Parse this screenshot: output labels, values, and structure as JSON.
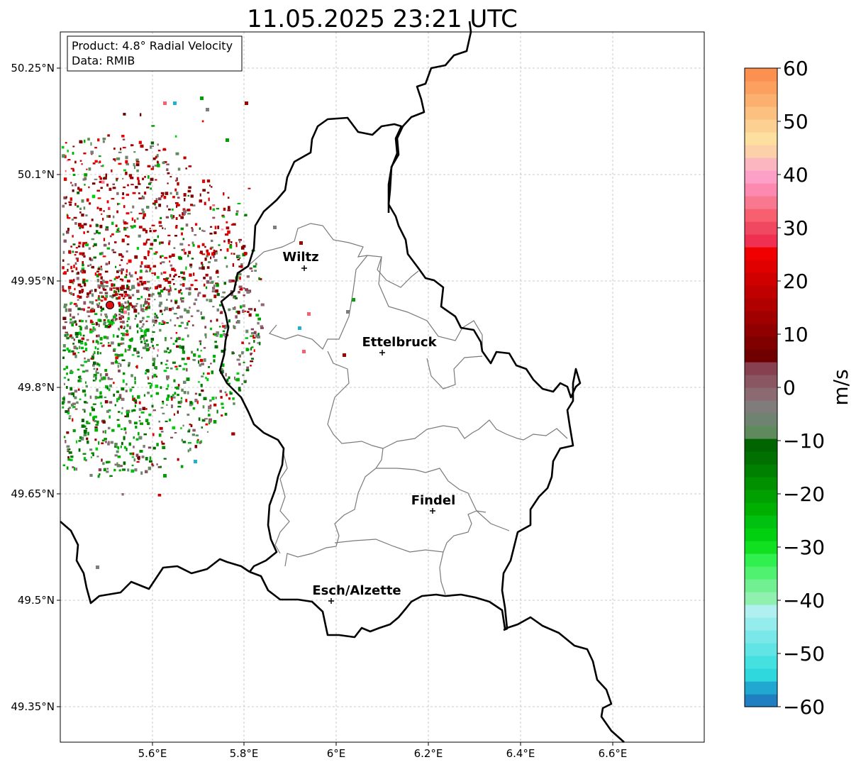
{
  "title": "11.05.2025 23:21 UTC",
  "info": {
    "product": "Product: 4.8° Radial Velocity",
    "data": "Data: RMIB"
  },
  "map": {
    "lat_ticks": [
      "50.25°N",
      "50.1°N",
      "49.95°N",
      "49.8°N",
      "49.65°N",
      "49.5°N",
      "49.35°N"
    ],
    "lon_ticks": [
      "5.6°E",
      "5.8°E",
      "6°E",
      "6.2°E",
      "6.4°E",
      "6.6°E"
    ],
    "cities": [
      {
        "name": "Wiltz"
      },
      {
        "name": "Ettelbruck"
      },
      {
        "name": "Findel"
      },
      {
        "name": "Esch/Alzette"
      }
    ],
    "radar_site_color": "#e01010"
  },
  "colorbar": {
    "label": "m/s",
    "ticks": [
      "60",
      "50",
      "40",
      "30",
      "20",
      "10",
      "0",
      "−10",
      "−20",
      "−30",
      "−40",
      "−50",
      "−60"
    ],
    "min": -60,
    "max": 60,
    "colors": [
      "#1f7fc0",
      "#20a8d0",
      "#2ed8dc",
      "#45e0e0",
      "#60e4e4",
      "#7ae8e8",
      "#95ecec",
      "#b0f0f0",
      "#90f0b0",
      "#70f090",
      "#50f070",
      "#30f050",
      "#10e020",
      "#00d010",
      "#00c010",
      "#00b000",
      "#00a000",
      "#009000",
      "#008000",
      "#007000",
      "#006400",
      "#5e8a5c",
      "#6e8470",
      "#807c7c",
      "#8c6a72",
      "#8a5662",
      "#864050",
      "#700000",
      "#800000",
      "#900000",
      "#a00000",
      "#b00000",
      "#c00000",
      "#d00000",
      "#e00000",
      "#f00000",
      "#f03050",
      "#f04860",
      "#f86070",
      "#f87890",
      "#fc8ab0",
      "#fca0c8",
      "#fcb6c0",
      "#fcd0a8",
      "#fde0a0",
      "#fcd090",
      "#fcc080",
      "#fcb070",
      "#fca060",
      "#fc9050"
    ]
  }
}
